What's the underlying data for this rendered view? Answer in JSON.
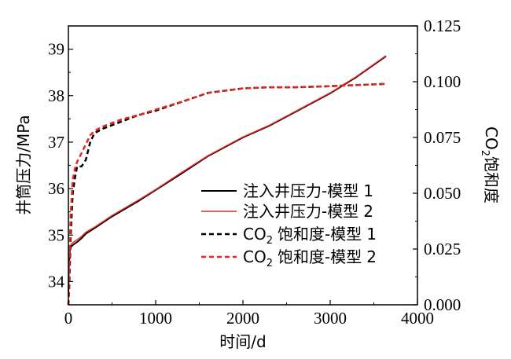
{
  "chart_data": {
    "type": "line",
    "title": "",
    "xlabel": "时间/d",
    "ylabel_left": "井筒压力/MPa",
    "ylabel_right_prefix": "CO",
    "ylabel_right_subscript": "2",
    "ylabel_right_suffix": "饱和度",
    "xlim": [
      0,
      4000
    ],
    "ylim_left": [
      33.5,
      39.5
    ],
    "ylim_right": [
      0.0,
      0.125
    ],
    "x_ticks": [
      "0",
      "1000",
      "2000",
      "3000",
      "4000"
    ],
    "y_left_ticks": [
      "34",
      "35",
      "36",
      "37",
      "38",
      "39"
    ],
    "y_right_ticks": [
      "0.000",
      "0.025",
      "0.050",
      "0.075",
      "0.100",
      "0.125"
    ],
    "x_tick_values": [
      0,
      1000,
      2000,
      3000,
      4000
    ],
    "y_left_tick_values": [
      34,
      35,
      36,
      37,
      38,
      39
    ],
    "y_right_tick_values": [
      0.0,
      0.025,
      0.05,
      0.075,
      0.1,
      0.125
    ],
    "grid": false,
    "legend_position": "center-right",
    "series": [
      {
        "name": "注入井压力-模型 1",
        "legend_prefix": "注入井压力-模型",
        "legend_index": "1",
        "axis": "left",
        "color": "#000000",
        "dashed": false,
        "x": [
          0,
          5,
          15,
          30,
          60,
          100,
          150,
          200,
          300,
          500,
          800,
          1000,
          1300,
          1600,
          2000,
          2300,
          2600,
          3000,
          3300,
          3640
        ],
        "y": [
          33.7,
          34.3,
          34.65,
          34.75,
          34.8,
          34.85,
          34.93,
          35.03,
          35.15,
          35.4,
          35.73,
          35.97,
          36.33,
          36.7,
          37.1,
          37.35,
          37.65,
          38.05,
          38.4,
          38.85
        ]
      },
      {
        "name": "注入井压力-模型 2",
        "legend_prefix": "注入井压力-模型",
        "legend_index": "2",
        "axis": "left",
        "color": "#e8261f",
        "dashed": false,
        "x": [
          0,
          5,
          15,
          30,
          60,
          100,
          150,
          200,
          300,
          500,
          800,
          1000,
          1300,
          1600,
          2000,
          2300,
          2600,
          3000,
          3300,
          3640
        ],
        "y": [
          33.7,
          34.45,
          34.7,
          34.8,
          34.85,
          34.9,
          34.97,
          35.06,
          35.17,
          35.42,
          35.75,
          35.98,
          36.35,
          36.71,
          37.11,
          37.36,
          37.66,
          38.06,
          38.41,
          38.86
        ]
      },
      {
        "name": "CO2 饱和度-模型 1",
        "legend_prefix": "饱和度-模型",
        "legend_index": "1",
        "axis": "right",
        "color": "#000000",
        "dashed": true,
        "x": [
          0,
          10,
          25,
          50,
          80,
          100,
          150,
          200,
          250,
          300,
          400,
          600,
          800,
          1000,
          1300,
          1600,
          2000,
          2300,
          2600,
          3000,
          3300,
          3640
        ],
        "y": [
          0.0,
          0.008,
          0.03,
          0.05,
          0.058,
          0.062,
          0.062,
          0.065,
          0.073,
          0.077,
          0.079,
          0.082,
          0.085,
          0.087,
          0.091,
          0.095,
          0.097,
          0.0975,
          0.0975,
          0.098,
          0.0985,
          0.099
        ]
      },
      {
        "name": "CO2 饱和度-模型 2",
        "legend_prefix": "饱和度-模型",
        "legend_index": "2",
        "axis": "right",
        "color": "#e8261f",
        "dashed": true,
        "x": [
          0,
          10,
          25,
          50,
          80,
          100,
          150,
          200,
          250,
          300,
          400,
          600,
          800,
          1000,
          1300,
          1600,
          2000,
          2300,
          2600,
          3000,
          3300,
          3640
        ],
        "y": [
          0.0,
          0.015,
          0.04,
          0.056,
          0.062,
          0.064,
          0.068,
          0.072,
          0.076,
          0.078,
          0.08,
          0.083,
          0.085,
          0.0875,
          0.091,
          0.095,
          0.097,
          0.0975,
          0.0975,
          0.098,
          0.0985,
          0.099
        ]
      }
    ]
  },
  "legend": {
    "co_prefix": "CO",
    "co_subscript": "2"
  }
}
